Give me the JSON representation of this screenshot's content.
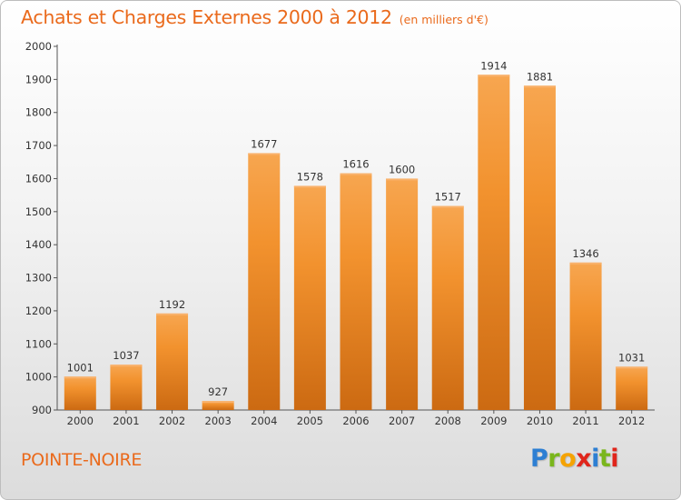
{
  "header": {
    "title": "Achats et Charges Externes 2000 à 2012",
    "unit": "(en milliers d'€)"
  },
  "footer": {
    "place": "POINTE-NOIRE",
    "logo_letters": [
      "P",
      "r",
      "o",
      "x",
      "i",
      "t",
      "i"
    ],
    "logo_colors": [
      "#2d7fd3",
      "#7ab61c",
      "#f5a300",
      "#e0251b",
      "#2d7fd3",
      "#7ab61c",
      "#e0251b"
    ]
  },
  "chart_data": {
    "type": "bar",
    "categories": [
      "2000",
      "2001",
      "2002",
      "2003",
      "2004",
      "2005",
      "2006",
      "2007",
      "2008",
      "2009",
      "2010",
      "2011",
      "2012"
    ],
    "values": [
      1001,
      1037,
      1192,
      927,
      1677,
      1578,
      1616,
      1600,
      1517,
      1914,
      1881,
      1346,
      1031
    ],
    "title": "Achats et Charges Externes 2000 à 2012",
    "xlabel": "",
    "ylabel": "",
    "ylim": [
      900,
      2000
    ],
    "yticks": [
      900,
      1000,
      1100,
      1200,
      1300,
      1400,
      1500,
      1600,
      1700,
      1800,
      1900,
      2000
    ],
    "grid": false,
    "bar_color": "#f2922e",
    "bar_color_light": "#f7a650",
    "bar_color_dark": "#cc6a12"
  }
}
